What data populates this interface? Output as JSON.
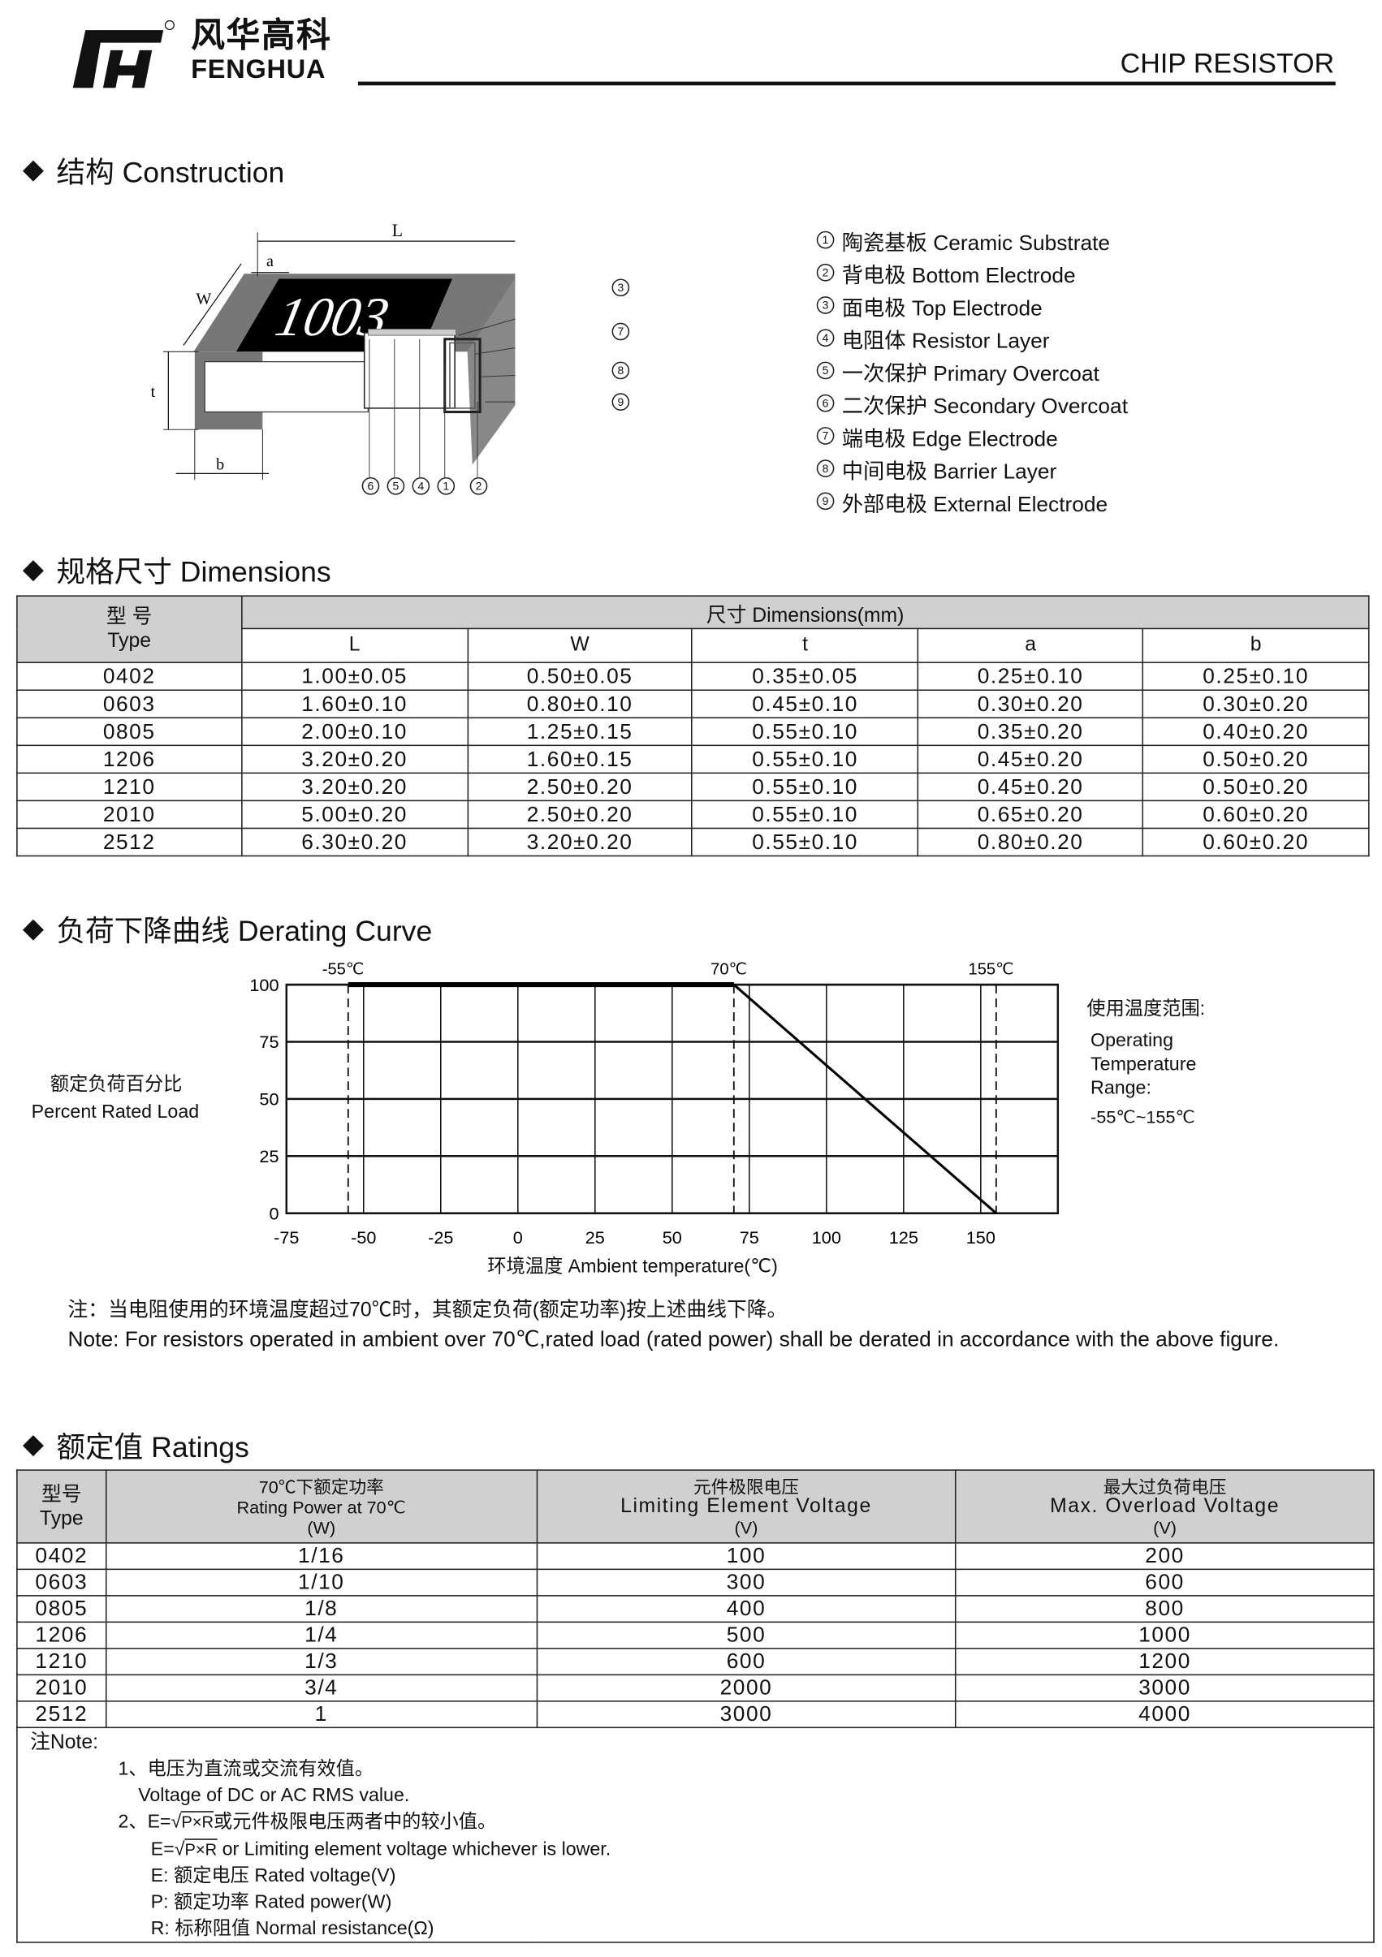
{
  "header": {
    "logo_cn": "风华高科",
    "logo_en": "FENGHUA",
    "registered_mark": "R",
    "doc_title": "CHIP RESISTOR"
  },
  "construction": {
    "title": "结构 Construction",
    "chip_marking": "1003",
    "dim_labels": {
      "L": "L",
      "a": "a",
      "W": "W",
      "t": "t",
      "b": "b"
    },
    "callouts_right": [
      "3",
      "7",
      "8",
      "9"
    ],
    "callouts_bottom": [
      "6",
      "5",
      "4",
      "1",
      "2"
    ],
    "legend": [
      {
        "num": "1",
        "label": "陶瓷基板 Ceramic Substrate"
      },
      {
        "num": "2",
        "label": "背电极 Bottom Electrode"
      },
      {
        "num": "3",
        "label": "面电极  Top Electrode"
      },
      {
        "num": "4",
        "label": "电阻体 Resistor Layer"
      },
      {
        "num": "5",
        "label": "一次保护 Primary Overcoat"
      },
      {
        "num": "6",
        "label": "二次保护  Secondary Overcoat"
      },
      {
        "num": "7",
        "label": "端电极 Edge Electrode"
      },
      {
        "num": "8",
        "label": "中间电极 Barrier Layer"
      },
      {
        "num": "9",
        "label": "外部电极 External Electrode"
      }
    ]
  },
  "dimensions": {
    "title": "规格尺寸 Dimensions",
    "type_header_cn": "型  号",
    "type_header_en": "Type",
    "group_header": "尺寸 Dimensions(mm)",
    "columns": [
      "L",
      "W",
      "t",
      "a",
      "b"
    ],
    "rows": [
      [
        "0402",
        "1.00±0.05",
        "0.50±0.05",
        "0.35±0.05",
        "0.25±0.10",
        "0.25±0.10"
      ],
      [
        "0603",
        "1.60±0.10",
        "0.80±0.10",
        "0.45±0.10",
        "0.30±0.20",
        "0.30±0.20"
      ],
      [
        "0805",
        "2.00±0.10",
        "1.25±0.15",
        "0.55±0.10",
        "0.35±0.20",
        "0.40±0.20"
      ],
      [
        "1206",
        "3.20±0.20",
        "1.60±0.15",
        "0.55±0.10",
        "0.45±0.20",
        "0.50±0.20"
      ],
      [
        "1210",
        "3.20±0.20",
        "2.50±0.20",
        "0.55±0.10",
        "0.45±0.20",
        "0.50±0.20"
      ],
      [
        "2010",
        "5.00±0.20",
        "2.50±0.20",
        "0.55±0.10",
        "0.65±0.20",
        "0.60±0.20"
      ],
      [
        "2512",
        "6.30±0.20",
        "3.20±0.20",
        "0.55±0.10",
        "0.80±0.20",
        "0.60±0.20"
      ]
    ]
  },
  "derating": {
    "title": "负荷下降曲线 Derating Curve",
    "ylabel_cn": "额定负荷百分比",
    "ylabel_en": "Percent Rated Load",
    "xlabel": "环境温度  Ambient temperature(℃)",
    "range_cn": "使用温度范围:",
    "range_en_1": "Operating",
    "range_en_2": "Temperature",
    "range_en_3": "Range:",
    "range_value": "-55℃~155℃",
    "note_cn": "注：当电阻使用的环境温度超过70℃时，其额定负荷(额定功率)按上述曲线下降。",
    "note_en": "Note: For resistors operated in ambient over 70℃,rated  load (rated power) shall be derated in accordance with the above figure."
  },
  "chart_data": {
    "type": "line",
    "title": "",
    "xlabel": "环境温度  Ambient temperature(℃)",
    "ylabel": "Percent Rated Load",
    "xlim": [
      -75,
      175
    ],
    "ylim": [
      0,
      100
    ],
    "x_ticks": [
      "-75",
      "-50",
      "-25",
      "0",
      "25",
      "50",
      "75",
      "100",
      "125",
      "150"
    ],
    "y_ticks": [
      "0",
      "25",
      "50",
      "75",
      "100"
    ],
    "grid": true,
    "series": [
      {
        "x": [
          -55,
          70,
          155
        ],
        "y": [
          100,
          100,
          0
        ]
      }
    ],
    "reference_lines": [
      {
        "x": -55,
        "label": "-55℃",
        "style": "dashed"
      },
      {
        "x": 70,
        "label": "70℃",
        "style": "dashed"
      },
      {
        "x": 155,
        "label": "155℃",
        "style": "dashed"
      }
    ]
  },
  "ratings": {
    "title": "额定值   Ratings",
    "headers": [
      {
        "cn": "型号",
        "en": "Type",
        "unit": ""
      },
      {
        "cn": "70℃下额定功率",
        "en": "Rating Power  at 70℃",
        "unit": "(W)"
      },
      {
        "cn": "元件极限电压",
        "en": "Limiting Element  Voltage",
        "unit": "(V)"
      },
      {
        "cn": "最大过负荷电压",
        "en": "Max. Overload Voltage",
        "unit": "(V)"
      }
    ],
    "rows": [
      [
        "0402",
        "1/16",
        "100",
        "200"
      ],
      [
        "0603",
        "1/10",
        "300",
        "600"
      ],
      [
        "0805",
        "1/8",
        "400",
        "800"
      ],
      [
        "1206",
        "1/4",
        "500",
        "1000"
      ],
      [
        "1210",
        "1/3",
        "600",
        "1200"
      ],
      [
        "2010",
        "3/4",
        "2000",
        "3000"
      ],
      [
        "2512",
        "1",
        "3000",
        "4000"
      ]
    ],
    "notes": {
      "heading": "注Note:",
      "n1_cn": "1、电压为直流或交流有效值。",
      "n1_en": "Voltage of DC or AC RMS value.",
      "n2_prefix": "2、E=",
      "sqrt_term": "P×R",
      "n2_cn_suffix": "或元件极限电压两者中的较小值。",
      "n2_en_prefix": "E=",
      "n2_en_suffix": " or Limiting element voltage whichever is lower.",
      "e_def": "E:  额定电压 Rated voltage(V)",
      "p_def": "P:  额定功率 Rated power(W)",
      "r_def": "R:  标称阻值 Normal resistance(Ω)"
    }
  }
}
